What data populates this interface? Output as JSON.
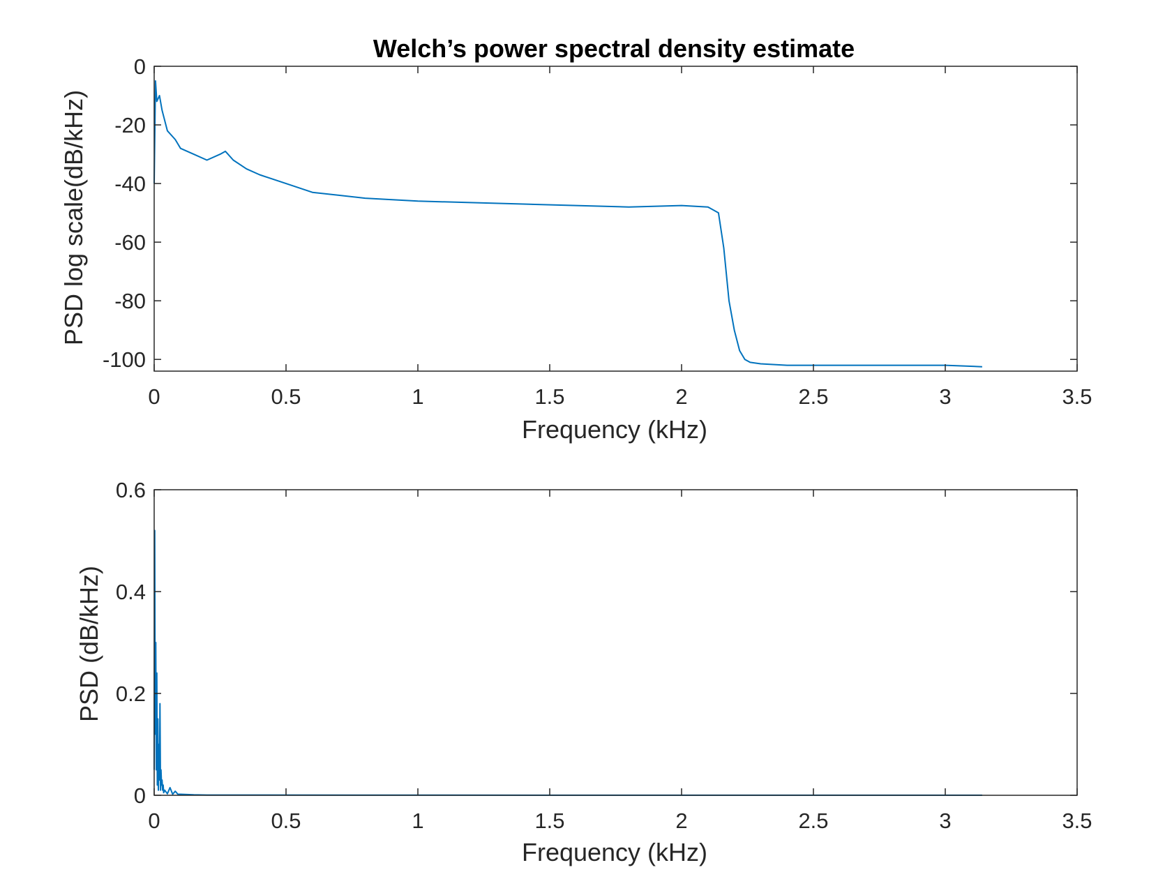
{
  "figure": {
    "title": "Welch’s power spectral density estimate"
  },
  "colors": {
    "line": "#0072BD",
    "axes": "#262626",
    "background": "#ffffff"
  },
  "chart_data": [
    {
      "type": "line",
      "title": "Welch’s power spectral density estimate",
      "xlabel": "Frequency (kHz)",
      "ylabel": "PSD log scale(dB/kHz)",
      "xlim": [
        0,
        3.5
      ],
      "ylim": [
        -104,
        0
      ],
      "xticks": [
        0,
        0.5,
        1,
        1.5,
        2,
        2.5,
        3,
        3.5
      ],
      "xtick_labels": [
        "0",
        "0.5",
        "1",
        "1.5",
        "2",
        "2.5",
        "3",
        "3.5"
      ],
      "yticks": [
        0,
        -20,
        -40,
        -60,
        -80,
        -100
      ],
      "ytick_labels": [
        "0",
        "-20",
        "-40",
        "-60",
        "-80",
        "-100"
      ],
      "grid": false,
      "series": [
        {
          "x": [
            0,
            0.005,
            0.01,
            0.02,
            0.03,
            0.05,
            0.08,
            0.1,
            0.15,
            0.2,
            0.25,
            0.27,
            0.3,
            0.35,
            0.4,
            0.5,
            0.6,
            0.7,
            0.8,
            1.0,
            1.2,
            1.4,
            1.6,
            1.8,
            2.0,
            2.1,
            2.14,
            2.16,
            2.18,
            2.2,
            2.22,
            2.24,
            2.26,
            2.3,
            2.4,
            2.6,
            2.8,
            3.0,
            3.14
          ],
          "y": [
            -40,
            -5,
            -12,
            -10,
            -15,
            -22,
            -25,
            -28,
            -30,
            -32,
            -30,
            -29,
            -32,
            -35,
            -37,
            -40,
            -43,
            -44,
            -45,
            -46,
            -46.5,
            -47,
            -47.5,
            -48,
            -47.5,
            -48,
            -50,
            -62,
            -80,
            -90,
            -97,
            -100,
            -101,
            -101.5,
            -102,
            -102,
            -102,
            -102,
            -102.5
          ]
        }
      ]
    },
    {
      "type": "line",
      "title": "",
      "xlabel": "Frequency (kHz)",
      "ylabel": "PSD (dB/kHz)",
      "xlim": [
        0,
        3.5
      ],
      "ylim": [
        0,
        0.6
      ],
      "xticks": [
        0,
        0.5,
        1,
        1.5,
        2,
        2.5,
        3,
        3.5
      ],
      "xtick_labels": [
        "0",
        "0.5",
        "1",
        "1.5",
        "2",
        "2.5",
        "3",
        "3.5"
      ],
      "yticks": [
        0,
        0.2,
        0.4,
        0.6
      ],
      "ytick_labels": [
        "0",
        "0.2",
        "0.4",
        "0.6"
      ],
      "grid": false,
      "series": [
        {
          "x": [
            0,
            0.002,
            0.004,
            0.006,
            0.008,
            0.01,
            0.012,
            0.014,
            0.016,
            0.018,
            0.02,
            0.022,
            0.024,
            0.026,
            0.028,
            0.03,
            0.032,
            0.034,
            0.036,
            0.04,
            0.05,
            0.06,
            0.07,
            0.08,
            0.09,
            0.1,
            0.15,
            0.2,
            1.0,
            2.0,
            3.0,
            3.14
          ],
          "y": [
            0.05,
            0.52,
            0.12,
            0.3,
            0.05,
            0.24,
            0.02,
            0.15,
            0.01,
            0.1,
            0.03,
            0.18,
            0.01,
            0.05,
            0.02,
            0.03,
            0.01,
            0.02,
            0.005,
            0.01,
            0.003,
            0.015,
            0.002,
            0.008,
            0.002,
            0.002,
            0.001,
            0.0005,
            0.0003,
            0.0002,
            0.0001,
            0.0001
          ]
        }
      ]
    }
  ]
}
